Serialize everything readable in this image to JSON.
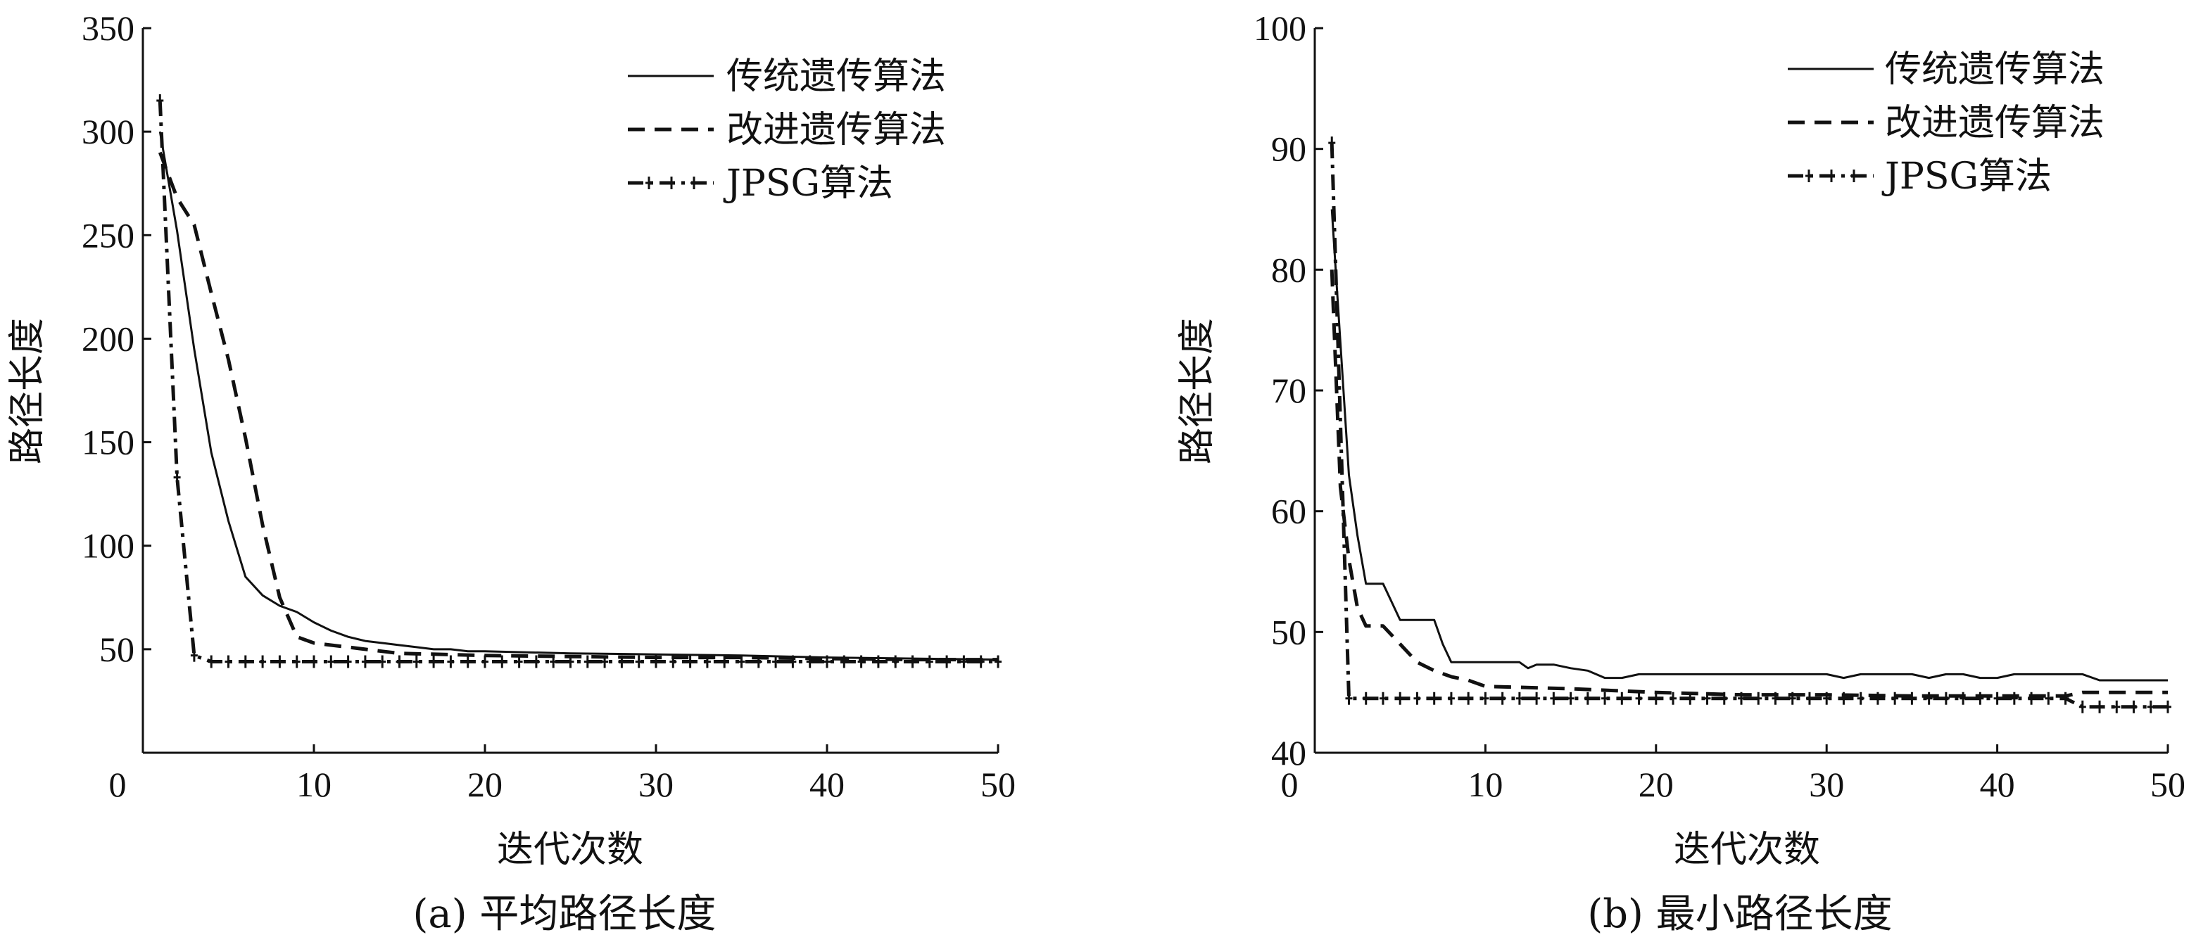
{
  "chart_data": [
    {
      "type": "line",
      "caption": "(a)  平均路径长度",
      "xlabel": "迭代次数",
      "ylabel": "路径长度",
      "xlim": [
        0,
        50
      ],
      "ylim": [
        0,
        350
      ],
      "xticks": [
        0,
        10,
        20,
        30,
        40,
        50
      ],
      "yticks": [
        50,
        100,
        150,
        200,
        250,
        300,
        350
      ],
      "legend_position": "top-right",
      "series": [
        {
          "name": "传统遗传算法",
          "style": "solid",
          "x": [
            1,
            2,
            3,
            4,
            5,
            6,
            7,
            8,
            9,
            10,
            11,
            12,
            13,
            14,
            15,
            16,
            17,
            18,
            19,
            20,
            25,
            30,
            35,
            40,
            45,
            50
          ],
          "y": [
            300,
            252,
            195,
            145,
            112,
            85,
            76,
            71,
            68,
            63,
            59,
            56,
            54,
            53,
            52,
            51,
            50,
            50,
            49,
            49,
            48,
            47.5,
            47,
            46,
            45.5,
            45
          ]
        },
        {
          "name": "改进遗传算法",
          "style": "dashed",
          "x": [
            1,
            2,
            3,
            4,
            5,
            6,
            7,
            8,
            9,
            10,
            11,
            12,
            13,
            14,
            15,
            20,
            25,
            30,
            35,
            40,
            45,
            50
          ],
          "y": [
            290,
            268,
            255,
            222,
            190,
            152,
            110,
            75,
            56,
            53,
            52,
            51,
            50,
            49,
            48,
            47,
            46.5,
            46,
            46,
            45.5,
            45,
            45
          ]
        },
        {
          "name": "JPSG算法",
          "style": "dash-dot-plus",
          "x": [
            1,
            2,
            3,
            4,
            5,
            6,
            7,
            8,
            9,
            10,
            11,
            12,
            13,
            14,
            15,
            16,
            17,
            18,
            19,
            20,
            21,
            22,
            23,
            24,
            25,
            26,
            27,
            28,
            29,
            30,
            31,
            32,
            33,
            34,
            35,
            36,
            37,
            38,
            39,
            40,
            41,
            42,
            43,
            44,
            45,
            46,
            47,
            48,
            49,
            50
          ],
          "y": [
            315,
            133,
            47,
            44,
            44,
            44,
            44,
            44,
            44,
            44,
            44,
            44,
            44,
            44,
            44,
            44,
            44,
            44,
            44,
            44,
            44,
            44,
            44,
            44,
            44,
            44,
            44,
            44,
            44,
            44,
            44,
            44,
            44,
            44,
            44,
            44,
            44,
            44,
            44,
            44,
            44,
            44,
            44,
            44,
            44,
            44,
            44,
            44,
            44,
            44
          ]
        }
      ]
    },
    {
      "type": "line",
      "caption": "(b)  最小路径长度",
      "xlabel": "迭代次数",
      "ylabel": "路径长度",
      "xlim": [
        0,
        50
      ],
      "ylim": [
        40,
        100
      ],
      "xticks": [
        0,
        10,
        20,
        30,
        40,
        50
      ],
      "yticks": [
        40,
        50,
        60,
        70,
        80,
        90,
        100
      ],
      "legend_position": "top-right",
      "series": [
        {
          "name": "传统遗传算法",
          "style": "solid",
          "x": [
            1,
            2,
            2.5,
            3,
            4,
            4.5,
            5,
            6,
            7,
            7.5,
            8,
            9,
            10,
            11,
            12,
            12.5,
            13,
            14,
            15,
            16,
            17,
            18,
            19,
            20,
            25,
            30,
            31,
            32,
            35,
            36,
            37,
            38,
            39,
            40,
            41,
            42,
            43,
            44,
            45,
            46,
            47,
            48,
            49,
            50
          ],
          "y": [
            85,
            63,
            58,
            54,
            54,
            52.5,
            51,
            51,
            51,
            49,
            47.5,
            47.5,
            47.5,
            47.5,
            47.5,
            47,
            47.3,
            47.3,
            47,
            46.8,
            46.2,
            46.2,
            46.5,
            46.5,
            46.5,
            46.5,
            46.2,
            46.5,
            46.5,
            46.2,
            46.5,
            46.5,
            46.2,
            46.2,
            46.5,
            46.5,
            46.5,
            46.5,
            46.5,
            46,
            46,
            46,
            46,
            46
          ]
        },
        {
          "name": "改进遗传算法",
          "style": "dashed",
          "x": [
            1,
            1.5,
            2,
            2.5,
            3,
            4,
            5,
            6,
            7,
            8,
            9,
            10,
            15,
            20,
            25,
            30,
            35,
            40,
            44,
            45,
            50
          ],
          "y": [
            80,
            62,
            56,
            52,
            50.5,
            50.5,
            49,
            47.5,
            46.8,
            46.3,
            46,
            45.5,
            45.3,
            45,
            44.8,
            44.8,
            44.7,
            44.7,
            44.7,
            45,
            45
          ]
        },
        {
          "name": "JPSG算法",
          "style": "dash-dot-plus",
          "x": [
            1,
            2,
            3,
            4,
            5,
            6,
            7,
            8,
            9,
            10,
            11,
            12,
            13,
            14,
            15,
            16,
            17,
            18,
            19,
            20,
            21,
            22,
            23,
            24,
            25,
            26,
            27,
            28,
            29,
            30,
            31,
            32,
            33,
            34,
            35,
            36,
            37,
            38,
            39,
            40,
            41,
            42,
            43,
            44,
            45,
            46,
            47,
            48,
            49,
            50
          ],
          "y": [
            90.5,
            44.5,
            44.5,
            44.5,
            44.5,
            44.5,
            44.5,
            44.5,
            44.5,
            44.5,
            44.5,
            44.5,
            44.5,
            44.5,
            44.5,
            44.5,
            44.5,
            44.5,
            44.5,
            44.5,
            44.5,
            44.5,
            44.5,
            44.5,
            44.5,
            44.5,
            44.5,
            44.5,
            44.5,
            44.5,
            44.5,
            44.5,
            44.5,
            44.5,
            44.5,
            44.5,
            44.5,
            44.5,
            44.5,
            44.5,
            44.5,
            44.5,
            44.5,
            44.5,
            43.8,
            43.8,
            43.8,
            43.8,
            43.8,
            43.8
          ]
        }
      ]
    }
  ]
}
